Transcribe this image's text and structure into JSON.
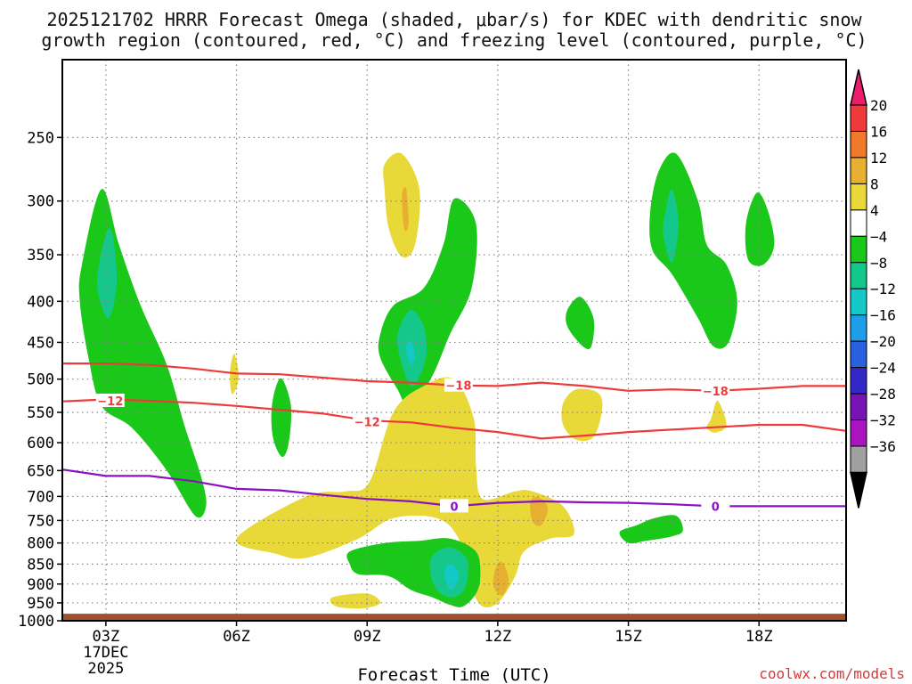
{
  "chart_data": {
    "type": "heatmap",
    "title_line1": "2025121702 HRRR Forecast Omega (shaded, μbar/s) for KDEC with dendritic snow",
    "title_line2": "growth region (contoured, red, °C) and freezing level (contoured, purple, °C)",
    "xlabel": "Forecast Time (UTC)",
    "credit": "coolwx.com/models",
    "x_ticks": [
      {
        "hour": 3,
        "label": "03Z",
        "sub1": "17DEC",
        "sub2": "2025"
      },
      {
        "hour": 6,
        "label": "06Z"
      },
      {
        "hour": 9,
        "label": "09Z"
      },
      {
        "hour": 12,
        "label": "12Z"
      },
      {
        "hour": 15,
        "label": "15Z"
      },
      {
        "hour": 18,
        "label": "18Z"
      }
    ],
    "xlim": [
      2,
      20
    ],
    "y_ticks_hpa": [
      250,
      300,
      350,
      400,
      450,
      500,
      550,
      600,
      650,
      700,
      750,
      800,
      850,
      900,
      950,
      1000
    ],
    "ylim_hpa": [
      200,
      1000
    ],
    "ground_hpa": 980,
    "colorbar": {
      "labels": [
        "20",
        "16",
        "12",
        "8",
        "4",
        "−4",
        "−8",
        "−12",
        "−16",
        "−20",
        "−24",
        "−28",
        "−32",
        "−36"
      ],
      "colors": [
        "#ee1c6f",
        "#f03a3a",
        "#f07a2a",
        "#e8b030",
        "#e8d838",
        "#ffffff",
        "#19c819",
        "#14c88c",
        "#14c8c8",
        "#1e9ee8",
        "#2860e0",
        "#3228c8",
        "#7814b4",
        "#aa14c0",
        "#a0a0a0",
        "#000000"
      ]
    },
    "series": [
      {
        "name": "-12 C isotherm",
        "color": "#ee3a3a",
        "points": [
          [
            2,
            533
          ],
          [
            3,
            530
          ],
          [
            4,
            532
          ],
          [
            5,
            535
          ],
          [
            6,
            540
          ],
          [
            7,
            546
          ],
          [
            8,
            552
          ],
          [
            9,
            563
          ],
          [
            10,
            566
          ],
          [
            11,
            575
          ],
          [
            12,
            582
          ],
          [
            13,
            593
          ],
          [
            14,
            588
          ],
          [
            15,
            582
          ],
          [
            16,
            578
          ],
          [
            17,
            574
          ],
          [
            18,
            570
          ],
          [
            19,
            570
          ],
          [
            20,
            580
          ]
        ],
        "labels": [
          {
            "hour": 3.1,
            "p": 532,
            "text": "−12"
          },
          {
            "hour": 9.0,
            "p": 565,
            "text": "−12"
          }
        ]
      },
      {
        "name": "-18 C isotherm",
        "color": "#ee3a3a",
        "points": [
          [
            2,
            478
          ],
          [
            3,
            478
          ],
          [
            4,
            480
          ],
          [
            5,
            485
          ],
          [
            6,
            492
          ],
          [
            7,
            493
          ],
          [
            8,
            498
          ],
          [
            9,
            503
          ],
          [
            10,
            505
          ],
          [
            11,
            509
          ],
          [
            12,
            510
          ],
          [
            13,
            505
          ],
          [
            14,
            510
          ],
          [
            15,
            517
          ],
          [
            16,
            515
          ],
          [
            17,
            517
          ],
          [
            18,
            514
          ],
          [
            19,
            510
          ],
          [
            20,
            510
          ]
        ],
        "labels": [
          {
            "hour": 11.1,
            "p": 509,
            "text": "−18"
          },
          {
            "hour": 17.0,
            "p": 517,
            "text": "−18"
          }
        ]
      },
      {
        "name": "0 C freezing level",
        "color": "#8c10c0",
        "points": [
          [
            2,
            648
          ],
          [
            3,
            660
          ],
          [
            4,
            660
          ],
          [
            5,
            670
          ],
          [
            6,
            685
          ],
          [
            7,
            688
          ],
          [
            8,
            697
          ],
          [
            9,
            705
          ],
          [
            10,
            710
          ],
          [
            11,
            720
          ],
          [
            12,
            713
          ],
          [
            13,
            710
          ],
          [
            14,
            712
          ],
          [
            15,
            713
          ],
          [
            16,
            716
          ],
          [
            17,
            720
          ],
          [
            18,
            720
          ],
          [
            19,
            720
          ],
          [
            20,
            720
          ]
        ],
        "labels": [
          {
            "hour": 11.0,
            "p": 720,
            "text": "0"
          },
          {
            "hour": 17.0,
            "p": 720,
            "text": "0"
          }
        ]
      }
    ],
    "shaded_regions": [
      {
        "level": "-4",
        "color": "#19c819",
        "points": [
          [
            2.45,
            360
          ],
          [
            2.9,
            290
          ],
          [
            3.3,
            340
          ],
          [
            3.8,
            405
          ],
          [
            4.4,
            480
          ],
          [
            4.8,
            570
          ],
          [
            5.2,
            665
          ],
          [
            5.3,
            720
          ],
          [
            5.05,
            740
          ],
          [
            4.4,
            650
          ],
          [
            3.6,
            575
          ],
          [
            2.9,
            540
          ],
          [
            2.6,
            470
          ],
          [
            2.4,
            400
          ]
        ]
      },
      {
        "level": "-8",
        "color": "#14c88c",
        "points": [
          [
            3.0,
            330
          ],
          [
            2.8,
            380
          ],
          [
            3.05,
            420
          ],
          [
            3.25,
            380
          ],
          [
            3.15,
            330
          ]
        ]
      },
      {
        "level": "4",
        "color": "#e8d838",
        "points": [
          [
            9.4,
            270
          ],
          [
            9.8,
            262
          ],
          [
            10.2,
            290
          ],
          [
            10.1,
            340
          ],
          [
            9.8,
            352
          ],
          [
            9.5,
            325
          ],
          [
            9.4,
            290
          ]
        ]
      },
      {
        "level": "8",
        "color": "#e8b030",
        "points": [
          [
            9.8,
            295
          ],
          [
            9.9,
            290
          ],
          [
            9.95,
            320
          ],
          [
            9.85,
            325
          ]
        ]
      },
      {
        "level": "-4",
        "color": "#19c819",
        "points": [
          [
            9.3,
            440
          ],
          [
            9.6,
            405
          ],
          [
            10.3,
            385
          ],
          [
            10.75,
            340
          ],
          [
            11.0,
            298
          ],
          [
            11.5,
            320
          ],
          [
            11.4,
            385
          ],
          [
            10.9,
            440
          ],
          [
            10.5,
            495
          ],
          [
            10.0,
            545
          ],
          [
            9.7,
            515
          ],
          [
            9.3,
            470
          ]
        ]
      },
      {
        "level": "-8",
        "color": "#14c88c",
        "points": [
          [
            9.7,
            440
          ],
          [
            10.0,
            410
          ],
          [
            10.3,
            430
          ],
          [
            10.35,
            470
          ],
          [
            10.05,
            510
          ],
          [
            9.8,
            480
          ]
        ]
      },
      {
        "level": "-12",
        "color": "#14c8c8",
        "points": [
          [
            9.9,
            458
          ],
          [
            10.0,
            448
          ],
          [
            10.1,
            468
          ],
          [
            10.0,
            480
          ]
        ]
      },
      {
        "level": "4",
        "color": "#e8d838",
        "points": [
          [
            5.95,
            465
          ],
          [
            6.05,
            498
          ],
          [
            5.9,
            522
          ],
          [
            5.85,
            490
          ]
        ]
      },
      {
        "level": "-4",
        "color": "#19c819",
        "points": [
          [
            6.9,
            512
          ],
          [
            7.05,
            500
          ],
          [
            7.25,
            540
          ],
          [
            7.2,
            600
          ],
          [
            7.05,
            625
          ],
          [
            6.85,
            595
          ],
          [
            6.8,
            550
          ]
        ]
      },
      {
        "level": "-4",
        "color": "#19c819",
        "points": [
          [
            13.6,
            410
          ],
          [
            13.9,
            395
          ],
          [
            14.2,
            420
          ],
          [
            14.15,
            455
          ],
          [
            13.95,
            455
          ],
          [
            13.6,
            430
          ]
        ]
      },
      {
        "level": "4",
        "color": "#e8d838",
        "points": [
          [
            13.5,
            536
          ],
          [
            13.8,
            515
          ],
          [
            14.3,
            520
          ],
          [
            14.4,
            545
          ],
          [
            14.2,
            590
          ],
          [
            13.8,
            595
          ],
          [
            13.5,
            570
          ]
        ]
      },
      {
        "level": "-4",
        "color": "#19c819",
        "points": [
          [
            15.5,
            310
          ],
          [
            15.7,
            275
          ],
          [
            16.1,
            262
          ],
          [
            16.6,
            300
          ],
          [
            16.8,
            340
          ],
          [
            17.25,
            360
          ],
          [
            17.5,
            400
          ],
          [
            17.3,
            450
          ],
          [
            16.95,
            455
          ],
          [
            16.6,
            420
          ],
          [
            16.0,
            370
          ],
          [
            15.55,
            345
          ]
        ]
      },
      {
        "level": "-8",
        "color": "#14c88c",
        "points": [
          [
            15.85,
            310
          ],
          [
            16.0,
            290
          ],
          [
            16.15,
            320
          ],
          [
            16.0,
            358
          ],
          [
            15.8,
            330
          ]
        ]
      },
      {
        "level": "-4",
        "color": "#19c819",
        "points": [
          [
            17.7,
            320
          ],
          [
            17.95,
            293
          ],
          [
            18.2,
            308
          ],
          [
            18.35,
            340
          ],
          [
            18.1,
            360
          ],
          [
            17.75,
            355
          ]
        ]
      },
      {
        "level": "4",
        "color": "#e8d838",
        "points": [
          [
            16.9,
            560
          ],
          [
            17.05,
            532
          ],
          [
            17.25,
            570
          ],
          [
            17.0,
            583
          ],
          [
            16.8,
            575
          ]
        ]
      },
      {
        "level": "4",
        "color": "#e8d838",
        "points": [
          [
            6.0,
            790
          ],
          [
            7.6,
            700
          ],
          [
            8.5,
            690
          ],
          [
            9.05,
            672
          ],
          [
            9.6,
            550
          ],
          [
            10.3,
            510
          ],
          [
            11.0,
            500
          ],
          [
            11.45,
            560
          ],
          [
            11.5,
            640
          ],
          [
            11.65,
            705
          ],
          [
            12.4,
            690
          ],
          [
            12.8,
            690
          ],
          [
            13.5,
            720
          ],
          [
            13.75,
            780
          ],
          [
            13.2,
            790
          ],
          [
            12.6,
            820
          ],
          [
            12.4,
            880
          ],
          [
            12.0,
            950
          ],
          [
            11.6,
            955
          ],
          [
            11.3,
            880
          ],
          [
            11.1,
            790
          ],
          [
            10.6,
            745
          ],
          [
            9.6,
            745
          ],
          [
            8.8,
            790
          ],
          [
            7.6,
            835
          ],
          [
            6.9,
            825
          ]
        ]
      },
      {
        "level": "8",
        "color": "#e8b030",
        "points": [
          [
            12.75,
            710
          ],
          [
            12.95,
            702
          ],
          [
            13.15,
            725
          ],
          [
            13.0,
            760
          ],
          [
            12.8,
            752
          ]
        ]
      },
      {
        "level": "8",
        "color": "#e8b030",
        "points": [
          [
            11.95,
            860
          ],
          [
            12.1,
            845
          ],
          [
            12.25,
            890
          ],
          [
            12.1,
            930
          ],
          [
            11.9,
            905
          ]
        ]
      },
      {
        "level": "4",
        "color": "#e8d838",
        "points": [
          [
            8.2,
            935
          ],
          [
            9.0,
            925
          ],
          [
            9.3,
            950
          ],
          [
            8.9,
            965
          ],
          [
            8.3,
            960
          ]
        ]
      },
      {
        "level": "-4",
        "color": "#19c819",
        "points": [
          [
            8.6,
            820
          ],
          [
            9.4,
            800
          ],
          [
            10.2,
            795
          ],
          [
            10.9,
            790
          ],
          [
            11.5,
            820
          ],
          [
            11.6,
            880
          ],
          [
            11.5,
            925
          ],
          [
            11.2,
            960
          ],
          [
            10.9,
            955
          ],
          [
            10.5,
            935
          ],
          [
            10.0,
            915
          ],
          [
            9.5,
            880
          ],
          [
            8.8,
            875
          ],
          [
            8.6,
            850
          ]
        ]
      },
      {
        "level": "-8",
        "color": "#14c88c",
        "points": [
          [
            10.5,
            830
          ],
          [
            10.9,
            810
          ],
          [
            11.3,
            840
          ],
          [
            11.25,
            910
          ],
          [
            10.95,
            935
          ],
          [
            10.6,
            915
          ],
          [
            10.45,
            870
          ]
        ]
      },
      {
        "level": "-12",
        "color": "#14c8c8",
        "points": [
          [
            10.8,
            860
          ],
          [
            10.95,
            850
          ],
          [
            11.1,
            880
          ],
          [
            10.95,
            915
          ],
          [
            10.8,
            890
          ]
        ]
      },
      {
        "level": "-4",
        "color": "#19c819",
        "points": [
          [
            14.8,
            775
          ],
          [
            15.2,
            760
          ],
          [
            15.6,
            745
          ],
          [
            16.1,
            740
          ],
          [
            16.25,
            772
          ],
          [
            16.0,
            785
          ],
          [
            15.4,
            795
          ],
          [
            15.0,
            800
          ]
        ]
      }
    ]
  }
}
